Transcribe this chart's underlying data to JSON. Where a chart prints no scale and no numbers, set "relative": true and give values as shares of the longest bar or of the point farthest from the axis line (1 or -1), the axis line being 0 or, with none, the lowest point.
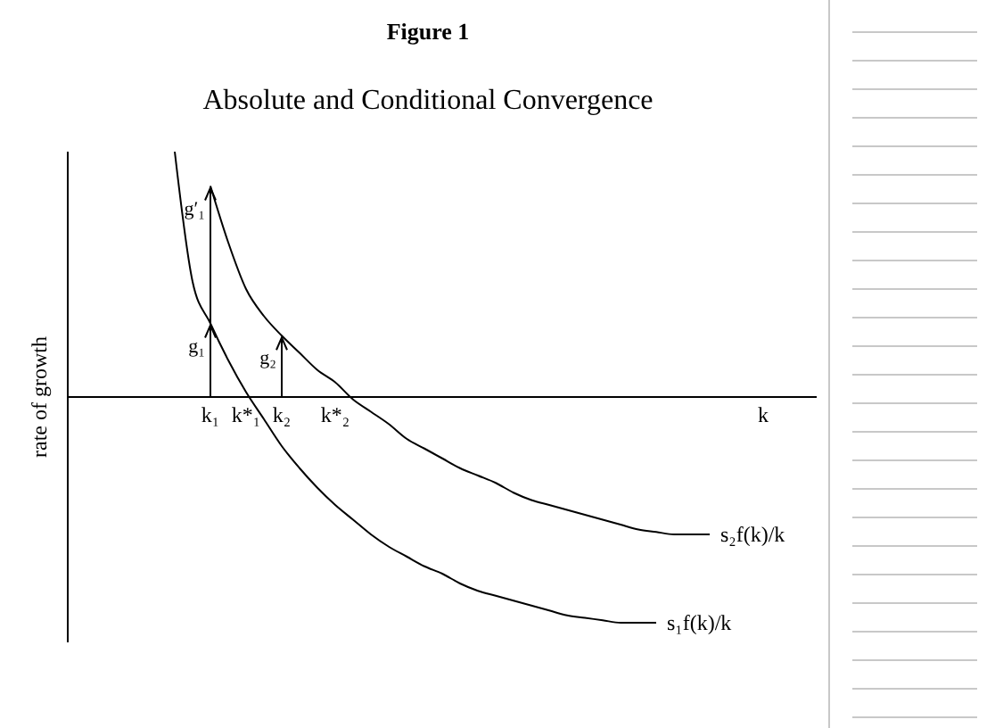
{
  "chart_data": {
    "type": "line",
    "title": "Figure 1",
    "subtitle": "Absolute and Conditional Convergence",
    "ylabel": "rate of growth",
    "relative": true,
    "marker": "none",
    "categories": [
      null,
      null,
      null,
      null,
      null,
      null,
      null,
      null,
      "k₁",
      null,
      "k*₁",
      null,
      "k₂",
      null,
      null,
      "k*₂",
      null,
      null,
      null,
      null,
      null,
      null,
      null,
      null,
      null,
      null,
      null,
      null,
      null,
      null,
      null,
      null,
      null,
      null,
      null,
      null,
      null,
      null,
      null,
      "k",
      null,
      null,
      null
    ],
    "series": [
      {
        "name": "s₂f(k)/k",
        "color": "#000000",
        "values": [
          null,
          null,
          null,
          null,
          null,
          null,
          null,
          null,
          0.86,
          0.63,
          0.44,
          0.33,
          0.25,
          0.18,
          0.11,
          0.06,
          -0.01,
          -0.06,
          -0.11,
          -0.17,
          -0.21,
          -0.25,
          -0.29,
          -0.32,
          -0.35,
          -0.39,
          -0.42,
          -0.44,
          -0.46,
          -0.48,
          -0.5,
          -0.52,
          -0.54,
          -0.55,
          -0.56,
          -0.56,
          -0.56,
          null,
          null,
          null,
          null,
          null,
          null
        ]
      },
      {
        "name": "s₁f(k)/k",
        "color": "#000000",
        "values": [
          null,
          null,
          null,
          null,
          null,
          null,
          1,
          0.47,
          0.3,
          0.15,
          0.02,
          -0.09,
          -0.2,
          -0.29,
          -0.37,
          -0.44,
          -0.5,
          -0.56,
          -0.61,
          -0.65,
          -0.69,
          -0.72,
          -0.76,
          -0.79,
          -0.81,
          -0.83,
          -0.85,
          -0.87,
          -0.89,
          -0.9,
          -0.91,
          -0.92,
          -0.92,
          -0.92,
          null,
          null,
          null,
          null,
          null,
          null,
          null,
          null,
          null
        ]
      }
    ],
    "annotations": [
      {
        "text": "g′₁",
        "x": "k₁",
        "y": 0.86
      },
      {
        "text": "g₁",
        "x": "k₁",
        "y": 0.3
      },
      {
        "text": "g₂",
        "x": "k₂",
        "y": 0.25
      }
    ]
  }
}
